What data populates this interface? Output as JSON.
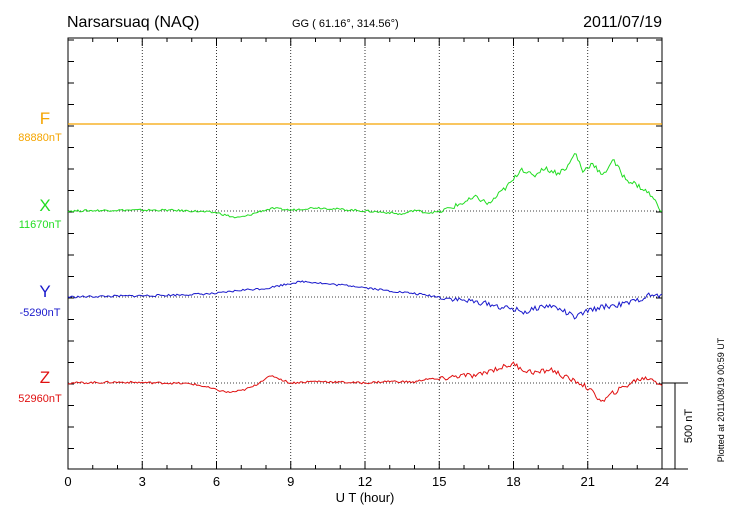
{
  "header": {
    "station": "Narsarsuaq (NAQ)",
    "coords": "GG ( 61.16°, 314.56°)",
    "date": "2011/07/19"
  },
  "side_note": "Plotted at 2011/08/19 00:59 UT",
  "scale_label": "500 nT",
  "chart_data": {
    "type": "line",
    "xlabel": "U T (hour)",
    "xlim": [
      0,
      24
    ],
    "xticks": [
      0,
      3,
      6,
      9,
      12,
      15,
      18,
      21,
      24
    ],
    "grid": "dotted vertical lines every 3 h",
    "series": [
      {
        "name": "F",
        "baseline_label": "88880nT",
        "color": "#f5a500",
        "x": [
          0,
          24
        ],
        "y": [
          0,
          0
        ]
      },
      {
        "name": "X",
        "baseline_label": "11670nT",
        "color": "#22dd22",
        "x": [
          0,
          2,
          4,
          5,
          6,
          6.8,
          7.2,
          7.8,
          8.3,
          9,
          10,
          11,
          12,
          13,
          13.5,
          14,
          14.5,
          15,
          15.5,
          16,
          16.5,
          17,
          17.5,
          18,
          18.3,
          18.8,
          19.2,
          19.8,
          20.2,
          20.5,
          20.8,
          21.2,
          21.6,
          22,
          22.5,
          23,
          23.5,
          24
        ],
        "y": [
          0,
          5,
          5,
          0,
          -10,
          -40,
          -30,
          0,
          15,
          5,
          20,
          10,
          0,
          -10,
          -20,
          5,
          -10,
          -5,
          20,
          50,
          80,
          40,
          110,
          180,
          250,
          200,
          250,
          220,
          260,
          340,
          230,
          280,
          200,
          300,
          190,
          150,
          100,
          0
        ]
      },
      {
        "name": "Y",
        "baseline_label": "-5290nT",
        "color": "#1a1acc",
        "x": [
          0,
          2,
          4,
          6,
          7,
          8,
          8.5,
          9,
          9.5,
          10,
          10.5,
          11,
          11.5,
          12,
          13,
          14,
          15,
          16,
          17,
          17.5,
          18,
          18.5,
          19,
          19.5,
          20,
          20.5,
          21,
          21.5,
          22,
          22.5,
          23,
          23.5,
          24
        ],
        "y": [
          0,
          5,
          10,
          20,
          40,
          50,
          65,
          80,
          90,
          85,
          75,
          70,
          65,
          55,
          35,
          20,
          0,
          -20,
          -40,
          -60,
          -70,
          -90,
          -60,
          -50,
          -80,
          -120,
          -80,
          -60,
          -50,
          -40,
          -20,
          10,
          5
        ]
      },
      {
        "name": "Z",
        "baseline_label": "52960nT",
        "color": "#e01010",
        "x": [
          0,
          2,
          4,
          5,
          5.5,
          6,
          6.5,
          7,
          7.5,
          8,
          8.3,
          8.7,
          9,
          10,
          11,
          12,
          13,
          14,
          14.5,
          15,
          15.5,
          16,
          16.5,
          17,
          17.5,
          18,
          18.5,
          19,
          19.5,
          20,
          20.3,
          20.7,
          21,
          21.3,
          21.6,
          22,
          22.5,
          23,
          23.5,
          24
        ],
        "y": [
          0,
          5,
          0,
          -5,
          -20,
          -40,
          -55,
          -45,
          -20,
          30,
          40,
          15,
          0,
          10,
          5,
          0,
          10,
          5,
          25,
          20,
          35,
          45,
          40,
          70,
          90,
          110,
          70,
          60,
          80,
          40,
          20,
          0,
          -30,
          -70,
          -110,
          -60,
          -20,
          20,
          30,
          -10
        ]
      }
    ]
  }
}
